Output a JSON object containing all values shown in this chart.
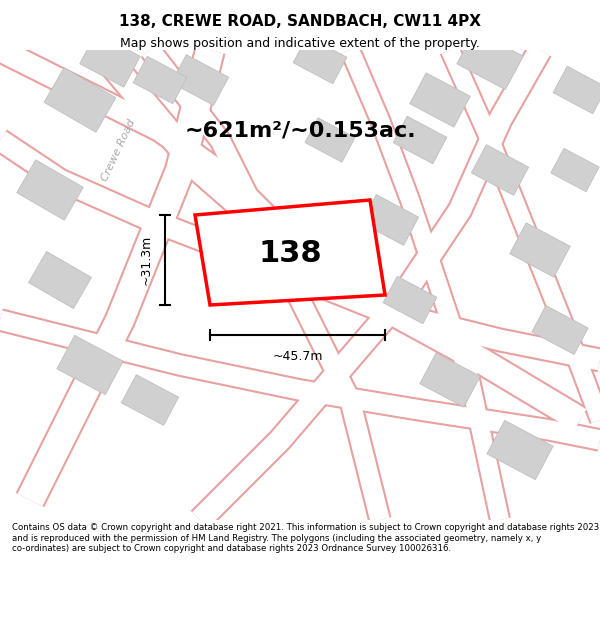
{
  "title_line1": "138, CREWE ROAD, SANDBACH, CW11 4PX",
  "title_line2": "Map shows position and indicative extent of the property.",
  "area_text": "~621m²/~0.153ac.",
  "plot_number": "138",
  "dim_width": "~45.7m",
  "dim_height": "~31.3m",
  "road_label": "Crewe Road",
  "footer_text": "Contains OS data © Crown copyright and database right 2021. This information is subject to Crown copyright and database rights 2023 and is reproduced with the permission of HM Land Registry. The polygons (including the associated geometry, namely x, y co-ordinates) are subject to Crown copyright and database rights 2023 Ordnance Survey 100026316.",
  "bg_color": "#f5f5f5",
  "map_bg": "#f0f0f0",
  "plot_fill": "#ffffff",
  "plot_edge": "#ff0000",
  "building_fill": "#d8d8d8",
  "road_color": "#ffffff",
  "road_edge": "#e8b0b0",
  "title_bg": "#ffffff",
  "footer_bg": "#ffffff"
}
